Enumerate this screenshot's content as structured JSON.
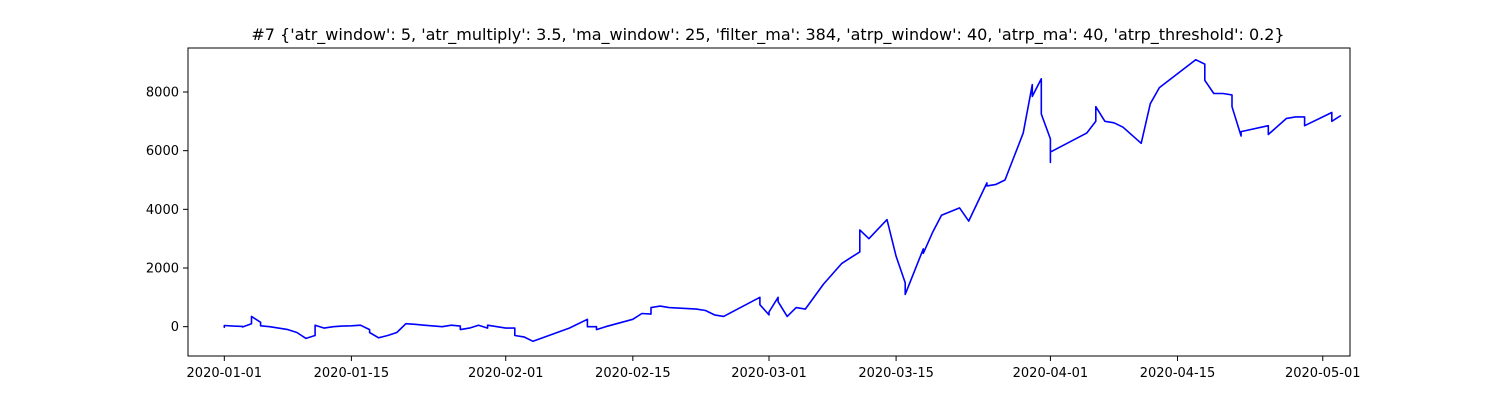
{
  "chart_data": {
    "type": "line",
    "title": "#7 {'atr_window': 5, 'atr_multiply': 3.5, 'ma_window': 25, 'filter_ma': 384, 'atrp_window': 40, 'atrp_ma': 40, 'atrp_threshold': 0.2}",
    "xlabel": "",
    "ylabel": "",
    "x_axis_type": "date",
    "xlim": [
      "2019-12-28",
      "2020-05-04"
    ],
    "ylim": [
      -1000,
      9500
    ],
    "x_ticks": [
      "2020-01-01",
      "2020-01-15",
      "2020-02-01",
      "2020-02-15",
      "2020-03-01",
      "2020-03-15",
      "2020-04-01",
      "2020-04-15",
      "2020-05-01"
    ],
    "y_ticks": [
      0,
      2000,
      4000,
      6000,
      8000
    ],
    "grid": false,
    "legend": "none",
    "series_color": "#0000ff",
    "series": [
      {
        "points": [
          [
            "2020-01-01",
            0
          ],
          [
            "2020-01-01",
            -20
          ],
          [
            "2020-01-01",
            40
          ],
          [
            "2020-01-02",
            20
          ],
          [
            "2020-01-03",
            10
          ],
          [
            "2020-01-03",
            -10
          ],
          [
            "2020-01-04",
            100
          ],
          [
            "2020-01-04",
            350
          ],
          [
            "2020-01-05",
            150
          ],
          [
            "2020-01-05",
            30
          ],
          [
            "2020-01-06",
            0
          ],
          [
            "2020-01-08",
            -100
          ],
          [
            "2020-01-09",
            -200
          ],
          [
            "2020-01-10",
            -400
          ],
          [
            "2020-01-11",
            -300
          ],
          [
            "2020-01-11",
            -200
          ],
          [
            "2020-01-11",
            50
          ],
          [
            "2020-01-12",
            -50
          ],
          [
            "2020-01-13",
            0
          ],
          [
            "2020-01-14",
            20
          ],
          [
            "2020-01-15",
            30
          ],
          [
            "2020-01-16",
            50
          ],
          [
            "2020-01-17",
            -100
          ],
          [
            "2020-01-17",
            -200
          ],
          [
            "2020-01-18",
            -380
          ],
          [
            "2020-01-19",
            -300
          ],
          [
            "2020-01-20",
            -200
          ],
          [
            "2020-01-21",
            100
          ],
          [
            "2020-01-22",
            80
          ],
          [
            "2020-01-23",
            50
          ],
          [
            "2020-01-25",
            0
          ],
          [
            "2020-01-26",
            50
          ],
          [
            "2020-01-27",
            20
          ],
          [
            "2020-01-27",
            -100
          ],
          [
            "2020-01-28",
            -50
          ],
          [
            "2020-01-29",
            50
          ],
          [
            "2020-01-30",
            -50
          ],
          [
            "2020-01-30",
            50
          ],
          [
            "2020-02-01",
            -50
          ],
          [
            "2020-02-02",
            -50
          ],
          [
            "2020-02-02",
            -300
          ],
          [
            "2020-02-03",
            -350
          ],
          [
            "2020-02-04",
            -500
          ],
          [
            "2020-02-08",
            -50
          ],
          [
            "2020-02-10",
            250
          ],
          [
            "2020-02-10",
            0
          ],
          [
            "2020-02-11",
            0
          ],
          [
            "2020-02-11",
            -100
          ],
          [
            "2020-02-12",
            0
          ],
          [
            "2020-02-15",
            250
          ],
          [
            "2020-02-16",
            450
          ],
          [
            "2020-02-17",
            430
          ],
          [
            "2020-02-17",
            650
          ],
          [
            "2020-02-18",
            700
          ],
          [
            "2020-02-19",
            650
          ],
          [
            "2020-02-22",
            600
          ],
          [
            "2020-02-23",
            550
          ],
          [
            "2020-02-24",
            400
          ],
          [
            "2020-02-25",
            350
          ],
          [
            "2020-02-29",
            1000
          ],
          [
            "2020-02-29",
            750
          ],
          [
            "2020-03-01",
            400
          ],
          [
            "2020-03-01",
            500
          ],
          [
            "2020-03-02",
            1000
          ],
          [
            "2020-03-02",
            850
          ],
          [
            "2020-03-03",
            350
          ],
          [
            "2020-03-04",
            650
          ],
          [
            "2020-03-05",
            600
          ],
          [
            "2020-03-07",
            1450
          ],
          [
            "2020-03-09",
            2150
          ],
          [
            "2020-03-10",
            2350
          ],
          [
            "2020-03-11",
            2550
          ],
          [
            "2020-03-11",
            3300
          ],
          [
            "2020-03-12",
            3000
          ],
          [
            "2020-03-14",
            3650
          ],
          [
            "2020-03-15",
            2400
          ],
          [
            "2020-03-16",
            1500
          ],
          [
            "2020-03-16",
            1100
          ],
          [
            "2020-03-18",
            2650
          ],
          [
            "2020-03-18",
            2500
          ],
          [
            "2020-03-19",
            3200
          ],
          [
            "2020-03-20",
            3800
          ],
          [
            "2020-03-22",
            4050
          ],
          [
            "2020-03-23",
            3600
          ],
          [
            "2020-03-25",
            4900
          ],
          [
            "2020-03-25",
            4800
          ],
          [
            "2020-03-26",
            4850
          ],
          [
            "2020-03-27",
            5000
          ],
          [
            "2020-03-29",
            6600
          ],
          [
            "2020-03-30",
            8250
          ],
          [
            "2020-03-30",
            7850
          ],
          [
            "2020-03-31",
            8450
          ],
          [
            "2020-03-31",
            7250
          ],
          [
            "2020-04-01",
            6400
          ],
          [
            "2020-04-01",
            5600
          ],
          [
            "2020-04-01",
            5950
          ],
          [
            "2020-04-05",
            6600
          ],
          [
            "2020-04-06",
            7000
          ],
          [
            "2020-04-06",
            7500
          ],
          [
            "2020-04-07",
            7000
          ],
          [
            "2020-04-08",
            6950
          ],
          [
            "2020-04-09",
            6800
          ],
          [
            "2020-04-11",
            6250
          ],
          [
            "2020-04-12",
            7600
          ],
          [
            "2020-04-13",
            8150
          ],
          [
            "2020-04-17",
            9100
          ],
          [
            "2020-04-18",
            8950
          ],
          [
            "2020-04-18",
            8400
          ],
          [
            "2020-04-19",
            7950
          ],
          [
            "2020-04-20",
            7950
          ],
          [
            "2020-04-21",
            7900
          ],
          [
            "2020-04-21",
            7500
          ],
          [
            "2020-04-22",
            6500
          ],
          [
            "2020-04-22",
            6650
          ],
          [
            "2020-04-25",
            6850
          ],
          [
            "2020-04-25",
            6550
          ],
          [
            "2020-04-27",
            7100
          ],
          [
            "2020-04-28",
            7150
          ],
          [
            "2020-04-29",
            7150
          ],
          [
            "2020-04-29",
            6850
          ],
          [
            "2020-05-02",
            7300
          ],
          [
            "2020-05-02",
            7000
          ],
          [
            "2020-05-03",
            7200
          ]
        ]
      }
    ]
  }
}
